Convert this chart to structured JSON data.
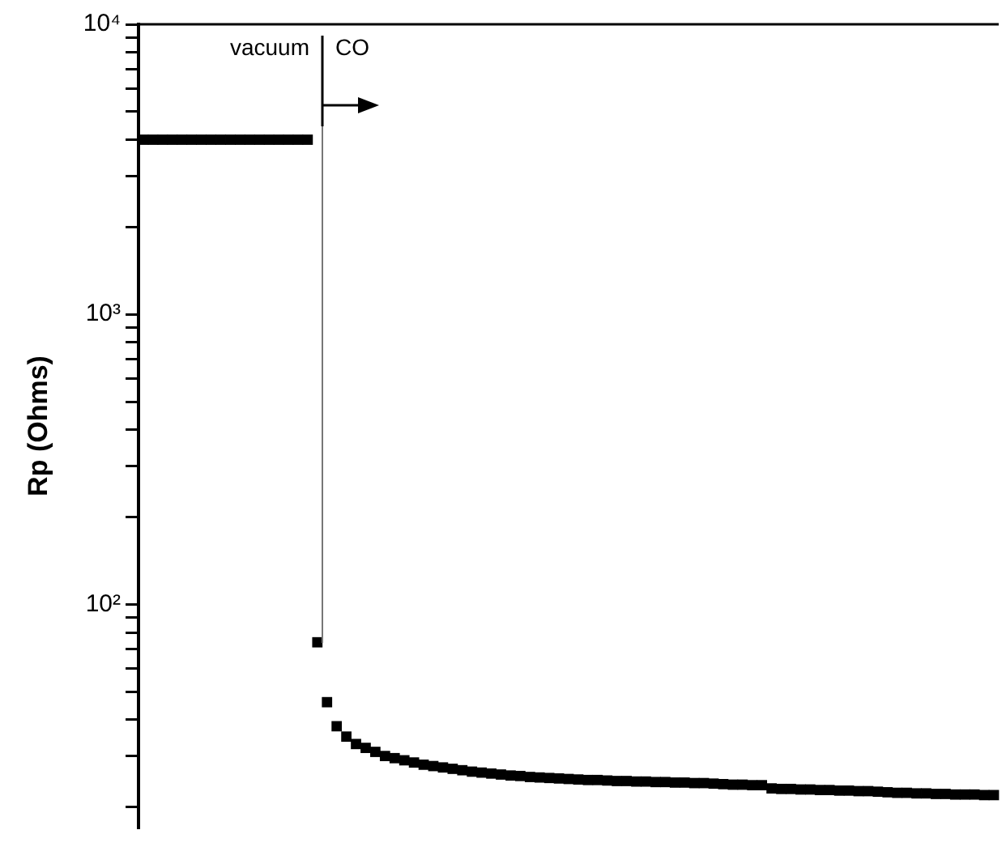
{
  "chart_data": {
    "type": "scatter",
    "ylabel": "Rp (Ohms)",
    "annotations": [
      "vacuum",
      "CO"
    ],
    "categories": [
      null,
      null,
      null,
      null,
      null,
      null,
      null,
      null,
      null,
      null,
      null,
      null,
      null,
      null,
      null,
      null,
      null,
      null,
      null,
      null,
      null,
      null,
      null,
      null,
      null,
      null,
      null,
      null,
      null,
      null,
      null,
      null,
      null,
      null,
      null,
      null,
      null,
      null,
      null,
      null,
      null,
      null,
      null,
      null,
      null,
      null,
      null,
      null,
      null,
      null,
      null,
      null,
      null,
      null,
      null,
      null,
      null,
      null,
      null,
      null,
      null,
      null,
      null,
      null,
      null,
      null,
      null,
      null,
      null,
      null,
      null,
      null,
      null,
      null,
      null,
      null,
      null,
      null,
      null,
      null,
      null,
      null,
      null,
      null,
      null,
      null,
      null,
      null,
      null
    ],
    "series": [
      {
        "color": "#000000",
        "values": [
          4000,
          4000,
          4000,
          4000,
          4000,
          4000,
          4000,
          4000,
          4000,
          4000,
          4000,
          4000,
          4000,
          4000,
          4000,
          4000,
          4000,
          4000,
          74,
          46,
          38,
          35,
          33,
          32,
          31,
          30,
          29.5,
          29,
          28.5,
          28,
          27.7,
          27.4,
          27.1,
          26.8,
          26.5,
          26.3,
          26.1,
          25.9,
          25.7,
          25.6,
          25.4,
          25.3,
          25.2,
          25.1,
          25,
          24.9,
          24.8,
          24.8,
          24.7,
          24.6,
          24.6,
          24.5,
          24.5,
          24.4,
          24.4,
          24.3,
          24.3,
          24.2,
          24.2,
          24.1,
          24,
          23.9,
          23.9,
          23.8,
          23.8,
          23.2,
          23.1,
          23.1,
          23,
          23,
          22.9,
          22.9,
          22.8,
          22.8,
          22.7,
          22.7,
          22.6,
          22.5,
          22.4,
          22.4,
          22.3,
          22.3,
          22.2,
          22.2,
          22.1,
          22.1,
          22.1,
          22,
          22
        ]
      }
    ],
    "log": "y",
    "ylim": [
      17,
      10000
    ],
    "yticks": [
      {
        "value": 20,
        "label": null
      },
      {
        "value": 30,
        "label": null
      },
      {
        "value": 40,
        "label": null
      },
      {
        "value": 50,
        "label": null
      },
      {
        "value": 60,
        "label": null
      },
      {
        "value": 70,
        "label": null
      },
      {
        "value": 80,
        "label": null
      },
      {
        "value": 90,
        "label": null
      },
      {
        "value": 100,
        "label": "10²"
      },
      {
        "value": 200,
        "label": null
      },
      {
        "value": 300,
        "label": null
      },
      {
        "value": 400,
        "label": null
      },
      {
        "value": 500,
        "label": null
      },
      {
        "value": 600,
        "label": null
      },
      {
        "value": 700,
        "label": null
      },
      {
        "value": 800,
        "label": null
      },
      {
        "value": 900,
        "label": null
      },
      {
        "value": 1000,
        "label": "10³"
      },
      {
        "value": 2000,
        "label": null
      },
      {
        "value": 3000,
        "label": null
      },
      {
        "value": 4000,
        "label": null
      },
      {
        "value": 5000,
        "label": null
      },
      {
        "value": 6000,
        "label": null
      },
      {
        "value": 7000,
        "label": null
      },
      {
        "value": 8000,
        "label": null
      },
      {
        "value": 9000,
        "label": null
      },
      {
        "value": 10000,
        "label": "10⁴"
      }
    ],
    "tick_labels": "y",
    "marker": "square",
    "grid": false,
    "legend": false
  }
}
